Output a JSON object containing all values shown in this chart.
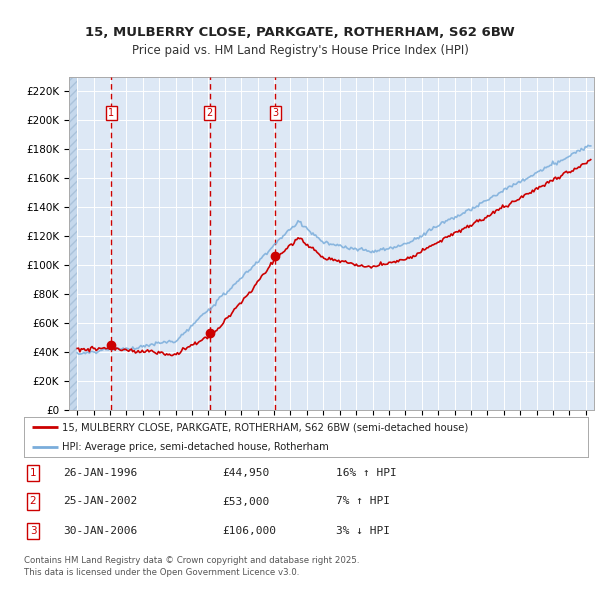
{
  "title1": "15, MULBERRY CLOSE, PARKGATE, ROTHERHAM, S62 6BW",
  "title2": "Price paid vs. HM Land Registry's House Price Index (HPI)",
  "ylim": [
    0,
    230000
  ],
  "yticks": [
    0,
    20000,
    40000,
    60000,
    80000,
    100000,
    120000,
    140000,
    160000,
    180000,
    200000,
    220000
  ],
  "ytick_labels": [
    "£0",
    "£20K",
    "£40K",
    "£60K",
    "£80K",
    "£100K",
    "£120K",
    "£140K",
    "£160K",
    "£180K",
    "£200K",
    "£220K"
  ],
  "xlim_left": 1993.5,
  "xlim_right": 2025.5,
  "bg_color": "#dde8f5",
  "legend_line1": "15, MULBERRY CLOSE, PARKGATE, ROTHERHAM, S62 6BW (semi-detached house)",
  "legend_line2": "HPI: Average price, semi-detached house, Rotherham",
  "sale_years": [
    1996.08,
    2002.08,
    2006.08
  ],
  "sale_prices": [
    44950,
    53000,
    106000
  ],
  "sale_labels": [
    "1",
    "2",
    "3"
  ],
  "table_rows": [
    [
      "1",
      "26-JAN-1996",
      "£44,950",
      "16% ↑ HPI"
    ],
    [
      "2",
      "25-JAN-2002",
      "£53,000",
      "7% ↑ HPI"
    ],
    [
      "3",
      "30-JAN-2006",
      "£106,000",
      "3% ↓ HPI"
    ]
  ],
  "footer": "Contains HM Land Registry data © Crown copyright and database right 2025.\nThis data is licensed under the Open Government Licence v3.0.",
  "line_color_red": "#cc0000",
  "line_color_blue": "#7aaddb",
  "vline_color": "#cc0000",
  "hatch_end_year": 1994.0,
  "data_start_year": 1994.0,
  "data_end_year": 2025.3
}
